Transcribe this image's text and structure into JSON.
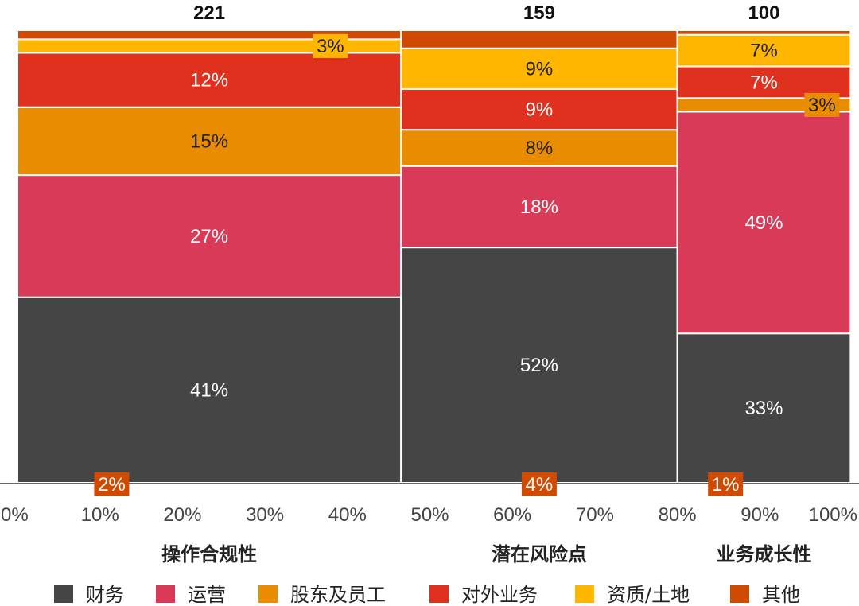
{
  "chart_data": {
    "type": "marimekko",
    "x_range": [
      0,
      100
    ],
    "x_ticks": [
      "0%",
      "10%",
      "20%",
      "30%",
      "40%",
      "50%",
      "60%",
      "70%",
      "80%",
      "90%",
      "100%"
    ],
    "series": [
      {
        "name": "财务",
        "color": "#454545"
      },
      {
        "name": "运营",
        "color": "#d93a58"
      },
      {
        "name": "股东及员工",
        "color": "#e98c00"
      },
      {
        "name": "对外业务",
        "color": "#e0301e"
      },
      {
        "name": "资质/土地",
        "color": "#ffb600"
      },
      {
        "name": "其他",
        "color": "#d04a02"
      }
    ],
    "columns": [
      {
        "name": "操作合规性",
        "total": 221,
        "total_label": "221",
        "width_pct": 46.5,
        "values": [
          41,
          27,
          15,
          12,
          3,
          2
        ],
        "labels": [
          "41%",
          "27%",
          "15%",
          "12%",
          "3%",
          "2%"
        ]
      },
      {
        "name": "潜在风险点",
        "total": 159,
        "total_label": "159",
        "width_pct": 33.5,
        "values": [
          52,
          18,
          8,
          9,
          9,
          4
        ],
        "labels": [
          "52%",
          "18%",
          "8%",
          "9%",
          "9%",
          "4%"
        ]
      },
      {
        "name": "业务成长性",
        "total": 100,
        "total_label": "100",
        "width_pct": 21.0,
        "values": [
          33,
          49,
          3,
          7,
          7,
          1
        ],
        "labels": [
          "33%",
          "49%",
          "3%",
          "7%",
          "7%",
          "1%"
        ]
      }
    ]
  }
}
